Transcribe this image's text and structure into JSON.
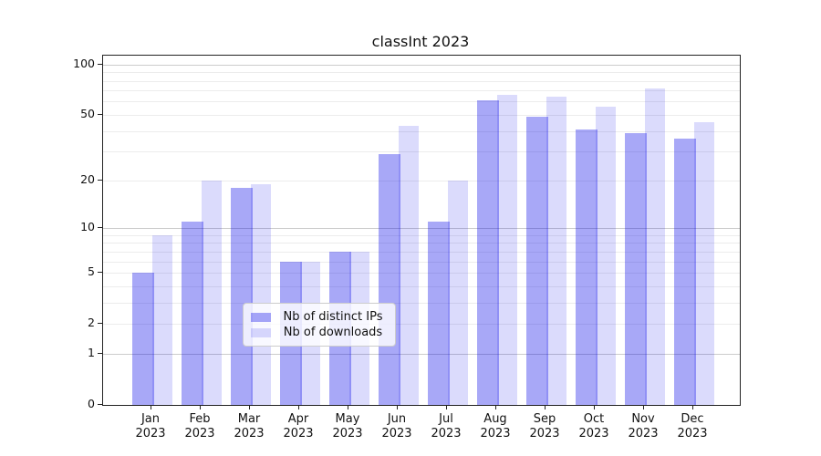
{
  "title": "classInt 2023",
  "chart_data": {
    "type": "bar",
    "title": "classInt 2023",
    "categories": [
      "Jan",
      "Feb",
      "Mar",
      "Apr",
      "May",
      "Jun",
      "Jul",
      "Aug",
      "Sep",
      "Oct",
      "Nov",
      "Dec"
    ],
    "year_label": "2023",
    "series": [
      {
        "name": "Nb of distinct IPs",
        "values": [
          5,
          11,
          18,
          6,
          7,
          29,
          11,
          61,
          49,
          41,
          39,
          36
        ]
      },
      {
        "name": "Nb of downloads",
        "values": [
          9,
          20,
          19,
          6,
          7,
          43,
          20,
          66,
          64,
          56,
          72,
          45
        ]
      }
    ],
    "xlabel": "",
    "ylabel": "",
    "yscale": "log1p",
    "ytick_labels": [
      100,
      50,
      20,
      10,
      5,
      2,
      1,
      0
    ],
    "grid": "horizontal",
    "gridline_values_minor": [
      2,
      3,
      4,
      5,
      6,
      7,
      8,
      9,
      20,
      30,
      40,
      50,
      60,
      70,
      80,
      90
    ],
    "gridline_values_major": [
      1,
      10,
      100
    ],
    "legend_position": "lower center",
    "ylim_top": 115
  },
  "colors": {
    "bar_distinct_ips": "rgba(0,0,232,0.34)",
    "bar_downloads": "rgba(0,0,232,0.14)",
    "bar_distinct_ips_hex": "#a8a8f7",
    "bar_downloads_hex": "#dbdbf9",
    "grid_minor": "#ececec",
    "grid_major": "#cccccc",
    "spine": "#222222",
    "legend_border": "#cccccc"
  }
}
